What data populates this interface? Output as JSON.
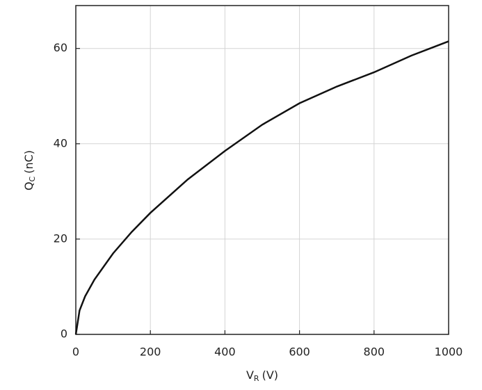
{
  "chart_data": {
    "type": "line",
    "x_label": {
      "main": "V",
      "sub": "R",
      "unit": "(V)"
    },
    "y_label": {
      "main": "Q",
      "sub": "C",
      "unit": "(nC)"
    },
    "x": [
      0,
      10,
      25,
      50,
      100,
      150,
      200,
      300,
      400,
      500,
      600,
      700,
      800,
      900,
      1000
    ],
    "series": [
      {
        "color": "#111111",
        "values": [
          0,
          5,
          8,
          11.5,
          17,
          21.5,
          25.5,
          32.5,
          38.5,
          44,
          48.5,
          52,
          55,
          58.5,
          61.5
        ]
      }
    ],
    "xlim": [
      0,
      1000
    ],
    "xticks": [
      0,
      200,
      400,
      600,
      800,
      1000
    ],
    "ylim": [
      0,
      69
    ],
    "yticks": [
      0,
      20,
      40,
      60
    ],
    "grid": true
  }
}
